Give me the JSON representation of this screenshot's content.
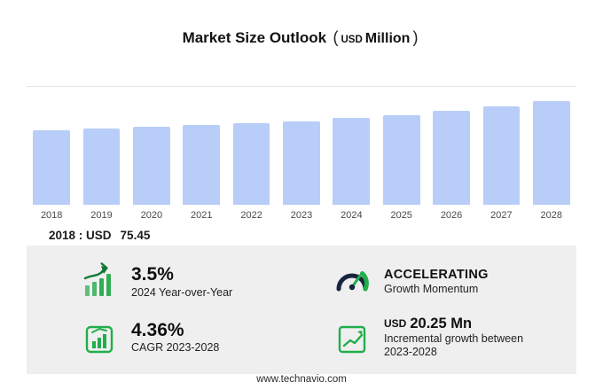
{
  "title": {
    "main": "Market Size Outlook",
    "paren_open": "(",
    "currency": "USD",
    "unit": "Million",
    "paren_close": ")"
  },
  "chart_data": {
    "type": "bar",
    "title": "Market Size Outlook (USD Million)",
    "categories": [
      "2018",
      "2019",
      "2020",
      "2021",
      "2022",
      "2023",
      "2024",
      "2025",
      "2026",
      "2027",
      "2028"
    ],
    "values": [
      75.45,
      77.3,
      79.2,
      81.1,
      83.1,
      85.2,
      88.2,
      91.5,
      95.3,
      99.9,
      105.45
    ],
    "unit": "USD Million",
    "ylim": [
      0,
      120
    ],
    "grid": "top-line-only",
    "legend": "none",
    "xlabel": "",
    "ylabel": "",
    "bar_color": "#b8cdf8"
  },
  "annotation": {
    "label": "2018 : USD",
    "value": "75.45"
  },
  "stats": [
    {
      "icon": "growth-bars-icon",
      "value": "3.5%",
      "label": "2024 Year-over-Year"
    },
    {
      "icon": "gauge-icon",
      "value": "ACCELERATING",
      "label": "Growth Momentum"
    },
    {
      "icon": "cagr-badge-icon",
      "value": "4.36%",
      "label": "CAGR 2023-2028"
    },
    {
      "icon": "incremental-growth-icon",
      "value_prefix": "USD",
      "value": "20.25 Mn",
      "label": "Incremental growth between 2023-2028"
    }
  ],
  "footer": {
    "url": "www.technavio.com"
  },
  "colors": {
    "bar": "#b8cdf8",
    "green": "#21ae4b",
    "dark_green": "#0e7a33",
    "navy": "#17253f",
    "panel": "#efefef"
  }
}
